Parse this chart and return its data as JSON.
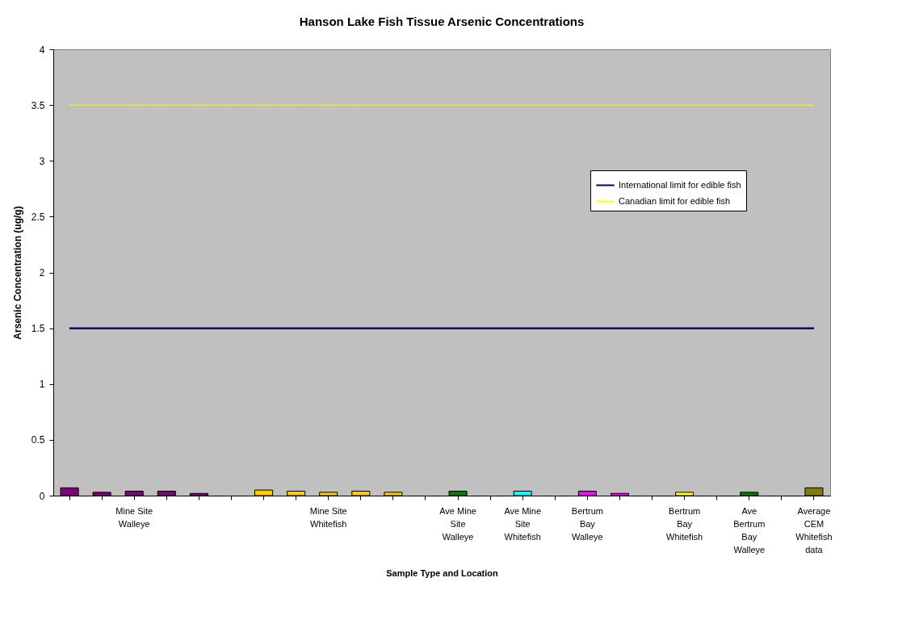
{
  "chart_data": {
    "type": "bar",
    "title": "Hanson Lake Fish Tissue Arsenic Concentrations",
    "xlabel": "Sample Type and Location",
    "ylabel": "Arsenic Concentration (ug/g)",
    "categories": [
      null,
      null,
      "Mine Site Walleye",
      null,
      null,
      null,
      null,
      null,
      "Mine Site Whitefish",
      null,
      null,
      null,
      "Ave Mine Site Walleye",
      null,
      "Ave Mine Site Whitefish",
      null,
      "Bertrum Bay Walleye",
      null,
      null,
      "Bertrum Bay Whitefish",
      null,
      "Ave Bertrum Bay Walleye",
      null,
      "Average CEM Whitefish data"
    ],
    "series": [
      {
        "values": [
          0.07,
          0.03,
          0.04,
          0.04,
          0.02,
          null,
          0.05,
          0.04,
          0.03,
          0.04,
          0.03,
          null,
          0.04,
          null,
          0.04,
          null,
          0.04,
          0.02,
          null,
          0.03,
          null,
          0.03,
          null,
          0.07
        ],
        "colors": [
          "#800080",
          "#800080",
          "#800080",
          "#800080",
          "#800080",
          null,
          "#ffcc00",
          "#ffcc00",
          "#ffcc00",
          "#ffcc00",
          "#ffcc00",
          null,
          "#008000",
          null,
          "#00ffff",
          null,
          "#ff00ff",
          "#ff00ff",
          null,
          "#ffff00",
          null,
          "#008000",
          null,
          "#808000"
        ]
      },
      {
        "type": "line",
        "name": "International limit for edible fish",
        "color": "#000080",
        "values": [
          1.5,
          1.5,
          1.5,
          1.5,
          1.5,
          1.5,
          1.5,
          1.5,
          1.5,
          1.5,
          1.5,
          1.5,
          1.5,
          1.5,
          1.5,
          1.5,
          1.5,
          1.5,
          1.5,
          1.5,
          1.5,
          1.5,
          1.5,
          1.5
        ]
      },
      {
        "type": "line",
        "name": "Canadian limit for edible fish",
        "color": "#ffff00",
        "values": [
          3.5,
          3.5,
          3.5,
          3.5,
          3.5,
          3.5,
          3.5,
          3.5,
          3.5,
          3.5,
          3.5,
          3.5,
          3.5,
          3.5,
          3.5,
          3.5,
          3.5,
          3.5,
          3.5,
          3.5,
          3.5,
          3.5,
          3.5,
          3.5
        ]
      }
    ],
    "ylim": [
      0,
      4
    ],
    "yticks": [
      0,
      0.5,
      1,
      1.5,
      2,
      2.5,
      3,
      3.5,
      4
    ],
    "grid": false,
    "legend": "right"
  }
}
